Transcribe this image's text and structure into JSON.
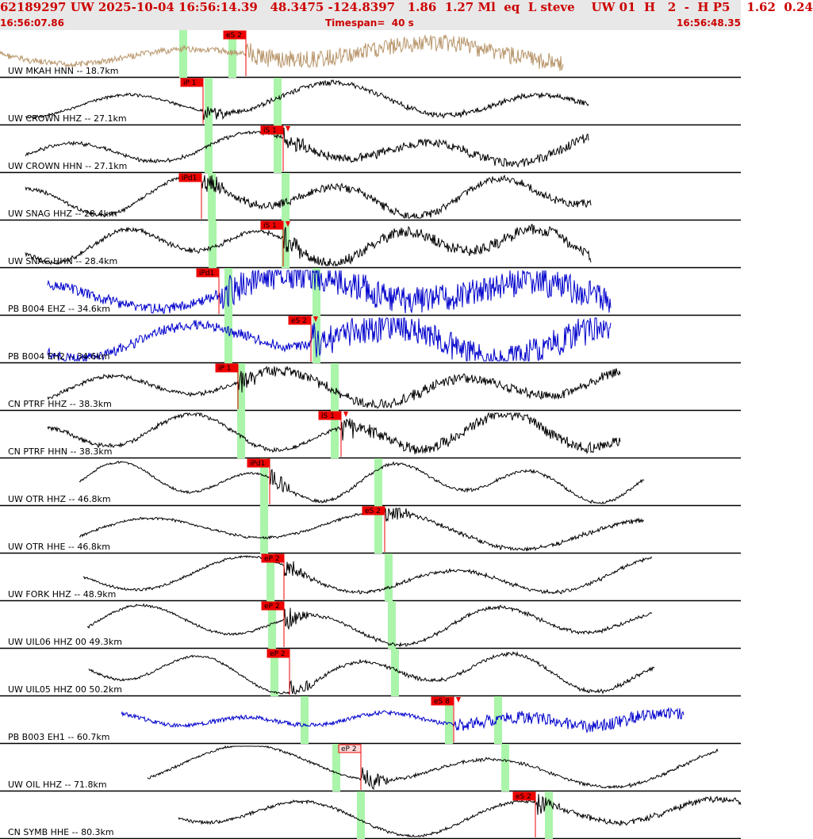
{
  "header": {
    "title": "62189297 UW 2025-10-04 16:56:14.39   48.3475 -124.8397   1.86  1.27 Ml  eq  L steve    UW 01  H   2  -  H P5    1.62  0.24",
    "start_time": "16:56:07.86",
    "timespan": "Timespan=  40 s",
    "end_time": "16:56:48.35"
  },
  "colors": {
    "header_text": "#cc0000",
    "header_bg": "#e8e8e8",
    "trace_short_period": "#000000",
    "trace_broadband": "#0000cc",
    "trace_accel": "#b8956a",
    "pick_box": "#ee0000",
    "predicted_window": "#aaf5aa"
  },
  "traces": [
    {
      "label": "UW MKAH HNN -- 18.7km",
      "type": "accel",
      "picks": [
        {
          "text": "eS 2",
          "style": "filled",
          "triangle": false
        }
      ]
    },
    {
      "label": "UW CROWN HHZ -- 27.1km",
      "type": "sp",
      "picks": [
        {
          "text": "iP 1",
          "style": "filled",
          "triangle": false
        }
      ]
    },
    {
      "label": "UW CROWN HHN -- 27.1km",
      "type": "sp",
      "picks": [
        {
          "text": "iS 1",
          "style": "filled",
          "triangle": true
        }
      ]
    },
    {
      "label": "UW SNAG HHZ -- 28.4km",
      "type": "sp",
      "picks": [
        {
          "text": "iPd1",
          "style": "filled",
          "triangle": false
        }
      ]
    },
    {
      "label": "UW SNAG HHN -- 28.4km",
      "type": "sp",
      "picks": [
        {
          "text": "iS 1",
          "style": "filled",
          "triangle": true
        }
      ]
    },
    {
      "label": "PB B004 EHZ -- 34.6km",
      "type": "bb",
      "picks": [
        {
          "text": "iPd1",
          "style": "filled",
          "triangle": false
        }
      ]
    },
    {
      "label": "PB B004 EH2 -- 34.6km",
      "type": "bb",
      "picks": [
        {
          "text": "eS 2",
          "style": "filled",
          "triangle": true
        }
      ]
    },
    {
      "label": "CN PTRF HHZ -- 38.3km",
      "type": "sp",
      "picks": [
        {
          "text": "iP 1",
          "style": "filled",
          "triangle": false
        }
      ]
    },
    {
      "label": "CN PTRF HHN -- 38.3km",
      "type": "sp",
      "picks": [
        {
          "text": "iS 1",
          "style": "filled",
          "triangle": true
        }
      ]
    },
    {
      "label": "UW OTR HHZ -- 46.8km",
      "type": "sp",
      "picks": [
        {
          "text": "iPd1",
          "style": "filled",
          "triangle": false
        }
      ]
    },
    {
      "label": "UW OTR HHE -- 46.8km",
      "type": "sp",
      "picks": [
        {
          "text": "eS 2",
          "style": "filled",
          "triangle": false
        }
      ]
    },
    {
      "label": "UW FORK HHZ -- 48.9km",
      "type": "sp",
      "picks": [
        {
          "text": "eP 2",
          "style": "filled",
          "triangle": false
        }
      ]
    },
    {
      "label": "UW UIL06 HHZ 00 49.3km",
      "type": "sp",
      "picks": [
        {
          "text": "eP 2",
          "style": "filled",
          "triangle": false
        }
      ]
    },
    {
      "label": "UW UIL05 HHZ 00 50.2km",
      "type": "sp",
      "picks": [
        {
          "text": "eP 2",
          "style": "filled",
          "triangle": false
        }
      ]
    },
    {
      "label": "PB B003 EH1 -- 60.7km",
      "type": "bb",
      "picks": [
        {
          "text": "eS 8",
          "style": "filled",
          "triangle": true
        }
      ]
    },
    {
      "label": "UW OIL HHZ -- 71.8km",
      "type": "sp",
      "picks": [
        {
          "text": "eP 2",
          "style": "outline",
          "triangle": false
        }
      ]
    },
    {
      "label": "CN SYMB HHE -- 80.3km",
      "type": "sp",
      "picks": [
        {
          "text": "eS 2",
          "style": "filled",
          "triangle": false
        }
      ]
    }
  ]
}
